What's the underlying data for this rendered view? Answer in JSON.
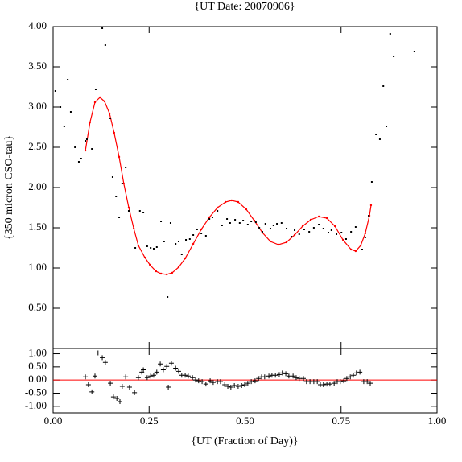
{
  "chart_data": [
    {
      "type": "scatter",
      "title": "{UT Date: 20070906}",
      "ylabel": "{350 micron CSO-tau}",
      "color": "#000000",
      "x": [
        0.006,
        0.019,
        0.029,
        0.038,
        0.046,
        0.057,
        0.067,
        0.073,
        0.084,
        0.088,
        0.101,
        0.111,
        0.128,
        0.136,
        0.149,
        0.155,
        0.164,
        0.172,
        0.18,
        0.189,
        0.197,
        0.214,
        0.226,
        0.235,
        0.245,
        0.254,
        0.262,
        0.27,
        0.281,
        0.289,
        0.298,
        0.306,
        0.319,
        0.327,
        0.335,
        0.346,
        0.356,
        0.365,
        0.375,
        0.386,
        0.398,
        0.407,
        0.415,
        0.428,
        0.44,
        0.453,
        0.461,
        0.474,
        0.486,
        0.495,
        0.507,
        0.516,
        0.528,
        0.537,
        0.545,
        0.553,
        0.566,
        0.574,
        0.583,
        0.595,
        0.608,
        0.621,
        0.629,
        0.641,
        0.654,
        0.667,
        0.679,
        0.692,
        0.704,
        0.717,
        0.725,
        0.738,
        0.751,
        0.763,
        0.776,
        0.788,
        0.805,
        0.813,
        0.822,
        0.83,
        0.841,
        0.851,
        0.86,
        0.868,
        0.878,
        0.887,
        0.941
      ],
      "values": [
        3.2,
        3.0,
        2.76,
        3.34,
        2.94,
        2.5,
        2.32,
        2.36,
        2.58,
        2.6,
        2.48,
        3.22,
        3.98,
        3.77,
        2.86,
        2.13,
        1.89,
        1.63,
        2.05,
        2.25,
        1.71,
        1.25,
        1.71,
        1.69,
        1.27,
        1.25,
        1.24,
        1.26,
        1.58,
        1.33,
        0.64,
        1.56,
        1.3,
        1.33,
        1.17,
        1.35,
        1.36,
        1.41,
        1.48,
        1.43,
        1.4,
        1.61,
        1.63,
        1.71,
        1.53,
        1.61,
        1.56,
        1.6,
        1.56,
        1.59,
        1.54,
        1.58,
        1.57,
        1.5,
        1.45,
        1.55,
        1.49,
        1.53,
        1.55,
        1.56,
        1.49,
        1.39,
        1.47,
        1.42,
        1.48,
        1.45,
        1.5,
        1.54,
        1.49,
        1.44,
        1.47,
        1.42,
        1.44,
        1.36,
        1.45,
        1.51,
        1.23,
        1.38,
        1.65,
        2.07,
        2.66,
        2.6,
        3.26,
        2.76,
        3.91,
        3.63,
        3.69
      ],
      "fit": {
        "color": "#ff0000",
        "x": [
          0.084,
          0.096,
          0.109,
          0.122,
          0.134,
          0.147,
          0.159,
          0.172,
          0.184,
          0.197,
          0.21,
          0.222,
          0.239,
          0.252,
          0.268,
          0.281,
          0.296,
          0.31,
          0.327,
          0.344,
          0.365,
          0.386,
          0.407,
          0.428,
          0.449,
          0.465,
          0.482,
          0.503,
          0.524,
          0.545,
          0.566,
          0.587,
          0.608,
          0.629,
          0.65,
          0.671,
          0.692,
          0.713,
          0.734,
          0.755,
          0.776,
          0.788,
          0.801,
          0.813,
          0.824,
          0.828
        ],
        "values": [
          2.46,
          2.81,
          3.06,
          3.12,
          3.07,
          2.92,
          2.68,
          2.38,
          2.05,
          1.75,
          1.49,
          1.28,
          1.13,
          1.04,
          0.96,
          0.93,
          0.92,
          0.94,
          1.01,
          1.12,
          1.3,
          1.48,
          1.63,
          1.75,
          1.82,
          1.84,
          1.82,
          1.73,
          1.59,
          1.44,
          1.33,
          1.29,
          1.32,
          1.41,
          1.52,
          1.6,
          1.64,
          1.62,
          1.52,
          1.35,
          1.23,
          1.21,
          1.28,
          1.43,
          1.65,
          1.78
        ]
      },
      "xlim": [
        0,
        1
      ],
      "ylim": [
        0,
        4
      ],
      "yticks": [
        {
          "value": 0.5,
          "label": "0.50"
        },
        {
          "value": 1,
          "label": "1.00"
        },
        {
          "value": 1.5,
          "label": "1.50"
        },
        {
          "value": 2,
          "label": "2.00"
        },
        {
          "value": 2.5,
          "label": "2.50"
        },
        {
          "value": 3,
          "label": "3.00"
        },
        {
          "value": 3.5,
          "label": "3.50"
        },
        {
          "value": 4,
          "label": "4.00"
        }
      ]
    },
    {
      "type": "scatter",
      "marker": "plus",
      "color": "#000000",
      "xlabel": "{UT (Fraction of Day)}",
      "x": [
        0.084,
        0.092,
        0.101,
        0.109,
        0.117,
        0.128,
        0.136,
        0.149,
        0.157,
        0.166,
        0.174,
        0.18,
        0.189,
        0.199,
        0.212,
        0.222,
        0.231,
        0.235,
        0.245,
        0.254,
        0.262,
        0.27,
        0.279,
        0.287,
        0.296,
        0.3,
        0.308,
        0.319,
        0.327,
        0.335,
        0.344,
        0.352,
        0.363,
        0.371,
        0.379,
        0.388,
        0.398,
        0.409,
        0.417,
        0.428,
        0.436,
        0.447,
        0.455,
        0.463,
        0.472,
        0.482,
        0.491,
        0.499,
        0.507,
        0.516,
        0.526,
        0.535,
        0.543,
        0.551,
        0.562,
        0.57,
        0.579,
        0.589,
        0.597,
        0.606,
        0.614,
        0.625,
        0.633,
        0.641,
        0.652,
        0.66,
        0.669,
        0.679,
        0.688,
        0.696,
        0.704,
        0.713,
        0.721,
        0.732,
        0.74,
        0.748,
        0.757,
        0.765,
        0.774,
        0.782,
        0.79,
        0.799,
        0.809,
        0.818,
        0.826
      ],
      "values": [
        0.12,
        -0.18,
        -0.45,
        0.15,
        1.03,
        0.85,
        0.67,
        -0.12,
        -0.64,
        -0.7,
        -0.82,
        -0.24,
        0.12,
        -0.27,
        -0.48,
        0.09,
        0.3,
        0.39,
        0.09,
        0.15,
        0.18,
        0.3,
        0.61,
        0.39,
        0.52,
        -0.27,
        0.64,
        0.45,
        0.33,
        0.18,
        0.18,
        0.15,
        0.09,
        0.0,
        -0.03,
        -0.06,
        -0.15,
        -0.03,
        -0.09,
        -0.06,
        -0.06,
        -0.18,
        -0.24,
        -0.27,
        -0.21,
        -0.24,
        -0.21,
        -0.18,
        -0.12,
        -0.06,
        -0.03,
        0.06,
        0.12,
        0.12,
        0.15,
        0.18,
        0.18,
        0.21,
        0.27,
        0.24,
        0.15,
        0.15,
        0.09,
        0.06,
        0.06,
        -0.06,
        -0.06,
        -0.06,
        -0.06,
        -0.18,
        -0.18,
        -0.15,
        -0.15,
        -0.12,
        -0.06,
        -0.06,
        -0.03,
        0.06,
        0.12,
        0.18,
        0.27,
        0.3,
        -0.06,
        -0.06,
        -0.12
      ],
      "hline": 0,
      "hline_color": "#ff0000",
      "xlim": [
        0,
        1
      ],
      "ylim": [
        -1.25,
        1.2
      ],
      "xticks": [
        {
          "value": 0,
          "label": "0.00"
        },
        {
          "value": 0.25,
          "label": "0.25"
        },
        {
          "value": 0.5,
          "label": "0.50"
        },
        {
          "value": 0.75,
          "label": "0.75"
        },
        {
          "value": 1,
          "label": "1.00"
        }
      ],
      "yticks": [
        {
          "value": -1,
          "label": "-1.00"
        },
        {
          "value": -0.5,
          "label": "-0.50"
        },
        {
          "value": 0,
          "label": "0.00"
        },
        {
          "value": 0.5,
          "label": "0.50"
        },
        {
          "value": 1,
          "label": "1.00"
        }
      ]
    }
  ]
}
